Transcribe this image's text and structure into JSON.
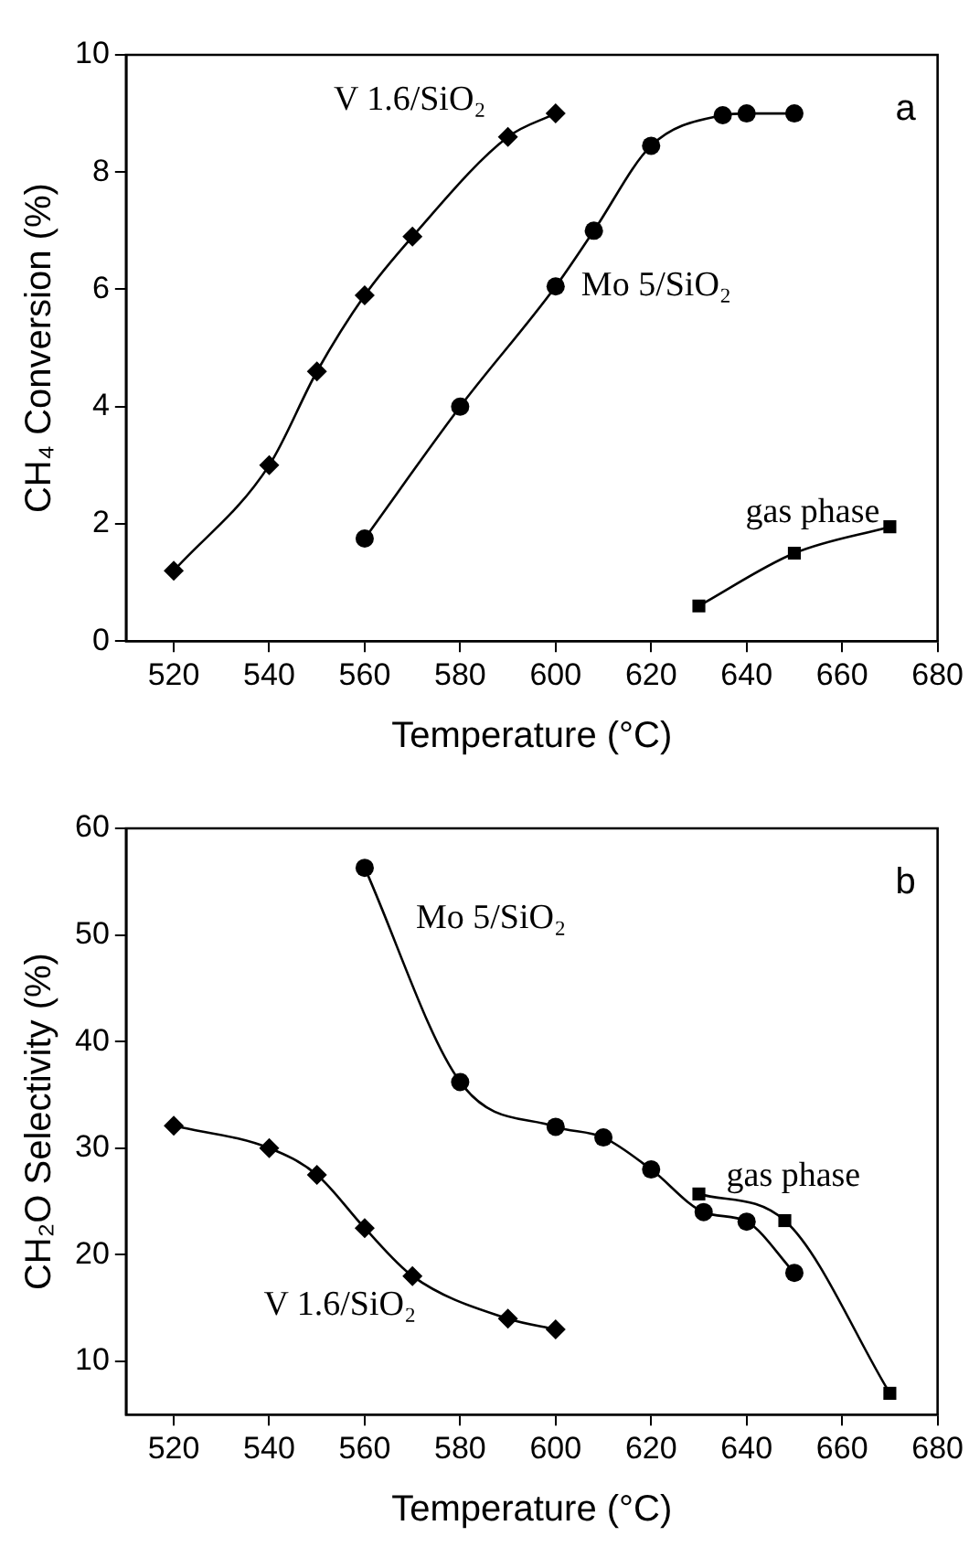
{
  "chart_data": [
    {
      "type": "line",
      "xlabel": "Temperature (°C)",
      "ylabel": "CH₄ Conversion (%)",
      "annotations": [
        "a"
      ],
      "xlim": [
        510,
        680
      ],
      "xticks": [
        520,
        540,
        560,
        580,
        600,
        620,
        640,
        660,
        680
      ],
      "ylim": [
        0,
        10
      ],
      "yticks": [
        0,
        2,
        4,
        6,
        8,
        10
      ],
      "grid": false,
      "legend": false,
      "line_style": "solid",
      "series": [
        {
          "name": "V 1.6/SiO₂",
          "color": "#000000",
          "marker": "diamond",
          "x": [
            520,
            540,
            550,
            560,
            570,
            590,
            600
          ],
          "values": [
            1.2,
            3.0,
            4.6,
            5.9,
            6.9,
            8.6,
            9.0
          ]
        },
        {
          "name": "Mo 5/SiO₂",
          "color": "#000000",
          "marker": "circle",
          "x": [
            560,
            580,
            600,
            608,
            620,
            635,
            640,
            650
          ],
          "values": [
            1.75,
            4.0,
            6.05,
            7.0,
            8.45,
            8.97,
            9.0,
            9.0
          ]
        },
        {
          "name": "gas phase",
          "color": "#000000",
          "marker": "square",
          "x": [
            630,
            650,
            670
          ],
          "values": [
            0.6,
            1.5,
            1.95
          ]
        }
      ]
    },
    {
      "type": "line",
      "xlabel": "Temperature (°C)",
      "ylabel": "CH₂O Selectivity (%)",
      "annotations": [
        "b"
      ],
      "xlim": [
        510,
        680
      ],
      "xticks": [
        520,
        540,
        560,
        580,
        600,
        620,
        640,
        660,
        680
      ],
      "ylim": [
        5,
        60
      ],
      "yticks": [
        10,
        20,
        30,
        40,
        50,
        60
      ],
      "grid": false,
      "legend": false,
      "line_style": "solid",
      "series": [
        {
          "name": "Mo 5/SiO₂",
          "color": "#000000",
          "marker": "circle",
          "x": [
            560,
            580,
            600,
            610,
            620,
            631,
            640,
            650
          ],
          "values": [
            56.3,
            36.2,
            32,
            31,
            28,
            24,
            23.1,
            18.3
          ]
        },
        {
          "name": "gas phase",
          "color": "#000000",
          "marker": "square",
          "x": [
            630,
            648,
            670
          ],
          "values": [
            25.7,
            23.2,
            7
          ]
        },
        {
          "name": "V 1.6/SiO₂",
          "color": "#000000",
          "marker": "diamond",
          "x": [
            520,
            540,
            550,
            560,
            570,
            590,
            600
          ],
          "values": [
            32.1,
            30,
            27.5,
            22.5,
            18,
            14,
            13
          ]
        }
      ]
    }
  ]
}
